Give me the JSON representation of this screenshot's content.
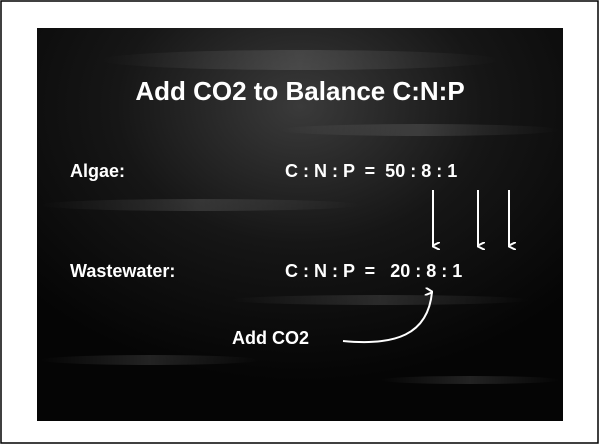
{
  "slide": {
    "title": "Add CO2 to Balance C:N:P",
    "rows": [
      {
        "label": "Algae:",
        "ratio": "C : N : P  =  50 : 8 : 1"
      },
      {
        "label": "Wastewater:",
        "ratio": "C : N : P  =   20 : 8 : 1"
      }
    ],
    "annotation": "Add CO2"
  }
}
